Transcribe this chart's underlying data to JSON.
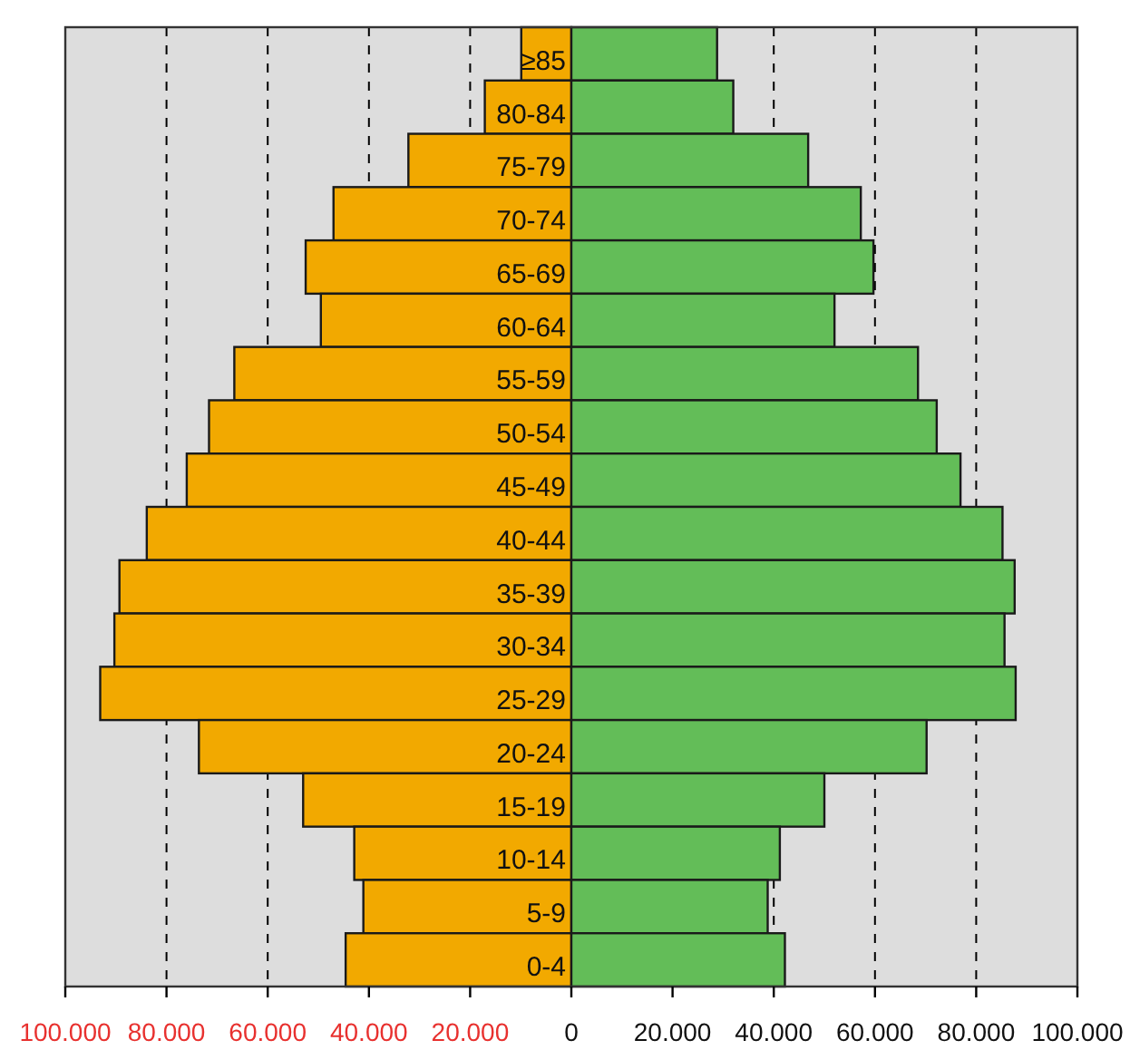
{
  "chart_data": {
    "type": "bar",
    "orientation": "horizontal",
    "stacked": true,
    "categories": [
      "≥85",
      "80-84",
      "75-79",
      "70-74",
      "65-69",
      "60-64",
      "55-59",
      "50-54",
      "45-49",
      "40-44",
      "35-39",
      "30-34",
      "25-29",
      "20-24",
      "15-19",
      "10-14",
      "5-9",
      "0-4"
    ],
    "series": [
      {
        "color": "#f2a900",
        "values": [
          -9900,
          -17100,
          -32200,
          -47000,
          -52500,
          -49500,
          -66600,
          -71600,
          -76000,
          -83900,
          -89300,
          -90300,
          -93100,
          -73600,
          -53000,
          -42900,
          -41100,
          -44600
        ]
      },
      {
        "color": "#63bd58",
        "values": [
          28800,
          32000,
          46800,
          57200,
          59700,
          52000,
          68500,
          72200,
          76900,
          85200,
          87600,
          85600,
          87800,
          70200,
          50000,
          41200,
          38800,
          42200
        ]
      }
    ],
    "xlim": [
      -100000,
      100000
    ],
    "xticks": [
      {
        "value": -100000,
        "label": "100.000"
      },
      {
        "value": -80000,
        "label": "80.000"
      },
      {
        "value": -60000,
        "label": "60.000"
      },
      {
        "value": -40000,
        "label": "40.000"
      },
      {
        "value": -20000,
        "label": "20.000"
      },
      0,
      {
        "value": 20000,
        "label": "20.000"
      },
      {
        "value": 40000,
        "label": "40.000"
      },
      {
        "value": 60000,
        "label": "60.000"
      },
      {
        "value": 80000,
        "label": "80.000"
      },
      {
        "value": 100000,
        "label": "100.000"
      }
    ],
    "grid": "x",
    "legend": false
  }
}
